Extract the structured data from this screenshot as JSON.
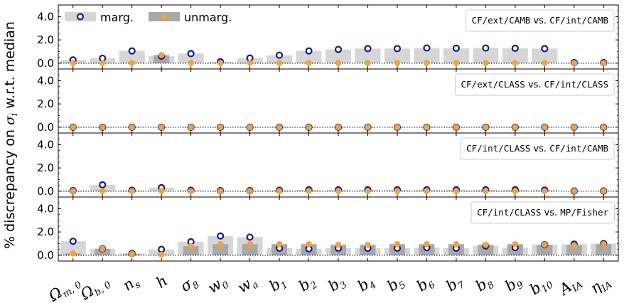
{
  "chart_data": {
    "type": "bar",
    "ylabel": "% discrepancy on σ_i w.r.t. median",
    "categories": [
      "Ωm,0",
      "Ωb,0",
      "ns",
      "h",
      "σ8",
      "w0",
      "wa",
      "b1",
      "b2",
      "b3",
      "b4",
      "b5",
      "b6",
      "b7",
      "b8",
      "b9",
      "b10",
      "AIA",
      "ηIA"
    ],
    "category_labels": [
      {
        "main": "Ω",
        "sub": "m, 0"
      },
      {
        "main": "Ω",
        "sub": "b, 0"
      },
      {
        "main": "n",
        "sub": "s"
      },
      {
        "main": "h",
        "sub": ""
      },
      {
        "main": "σ",
        "sub": "8"
      },
      {
        "main": "w",
        "sub": "0"
      },
      {
        "main": "w",
        "sub": "a"
      },
      {
        "main": "b",
        "sub": "1"
      },
      {
        "main": "b",
        "sub": "2"
      },
      {
        "main": "b",
        "sub": "3"
      },
      {
        "main": "b",
        "sub": "4"
      },
      {
        "main": "b",
        "sub": "5"
      },
      {
        "main": "b",
        "sub": "6"
      },
      {
        "main": "b",
        "sub": "7"
      },
      {
        "main": "b",
        "sub": "8"
      },
      {
        "main": "b",
        "sub": "9"
      },
      {
        "main": "b",
        "sub": "10"
      },
      {
        "main": "A",
        "sub": "IA"
      },
      {
        "main": "η",
        "sub": "IA"
      }
    ],
    "ylim": [
      -0.5,
      5.0
    ],
    "yticks": [
      "0.0",
      "2.0",
      "4.0"
    ],
    "legend": {
      "placement": "top-left",
      "marg": "marg.",
      "unmarg": "unmarg."
    },
    "colors": {
      "marg_bar": "#d6d6d6",
      "unmarg_bar": "#a8a8a8",
      "marg_marker": "#1a1a8c",
      "unmarg_marker": "#f2a33a"
    },
    "panels": [
      {
        "label_a": "CF/ext/CAMB",
        "label_vs": "vs.",
        "label_b": "CF/int/CAMB",
        "marg": [
          0.28,
          0.42,
          1.05,
          0.6,
          0.82,
          0.12,
          0.44,
          0.68,
          1.05,
          1.18,
          1.25,
          1.25,
          1.3,
          1.28,
          1.3,
          1.28,
          1.25,
          0.05,
          0.05
        ],
        "unmarg": [
          0.02,
          0.02,
          0.02,
          0.7,
          0.02,
          0.02,
          0.02,
          0.02,
          0.02,
          0.02,
          0.02,
          0.02,
          0.02,
          0.02,
          0.02,
          0.02,
          0.02,
          0.02,
          0.02
        ]
      },
      {
        "label_a": "CF/ext/CLASS",
        "label_vs": "vs.",
        "label_b": "CF/int/CLASS",
        "marg": [
          0.0,
          0.0,
          0.0,
          0.0,
          0.0,
          0.0,
          0.0,
          0.0,
          0.0,
          0.0,
          0.0,
          0.0,
          0.0,
          0.0,
          0.0,
          0.0,
          0.0,
          0.0,
          0.0
        ],
        "unmarg": [
          0.0,
          0.0,
          0.0,
          0.0,
          0.0,
          0.0,
          0.0,
          0.0,
          0.0,
          0.0,
          0.0,
          0.0,
          0.0,
          0.0,
          0.0,
          0.0,
          0.0,
          0.0,
          0.0
        ]
      },
      {
        "label_a": "CF/int/CLASS",
        "label_vs": "vs.",
        "label_b": "CF/int/CAMB",
        "marg": [
          0.05,
          0.55,
          0.08,
          0.3,
          0.08,
          0.05,
          0.05,
          0.08,
          0.12,
          0.12,
          0.12,
          0.12,
          0.12,
          0.12,
          0.12,
          0.12,
          0.1,
          0.02,
          0.02
        ],
        "unmarg": [
          0.02,
          0.02,
          0.02,
          0.02,
          0.02,
          0.02,
          0.02,
          0.02,
          0.02,
          0.02,
          0.02,
          0.02,
          0.02,
          0.02,
          0.02,
          0.02,
          0.02,
          0.02,
          0.02
        ]
      },
      {
        "label_a": "CF/int/CLASS",
        "label_vs": "vs.",
        "label_b": "MP/Fisher",
        "marg": [
          1.2,
          0.55,
          0.15,
          0.5,
          1.15,
          1.65,
          1.55,
          0.6,
          0.55,
          0.6,
          0.6,
          0.6,
          0.65,
          0.6,
          0.8,
          0.65,
          0.9,
          0.95,
          1.0
        ],
        "unmarg": [
          0.15,
          0.55,
          0.12,
          0.05,
          0.78,
          0.95,
          0.95,
          0.95,
          0.95,
          0.9,
          0.9,
          0.95,
          0.95,
          0.95,
          0.9,
          0.95,
          0.9,
          0.85,
          0.95
        ]
      }
    ]
  }
}
